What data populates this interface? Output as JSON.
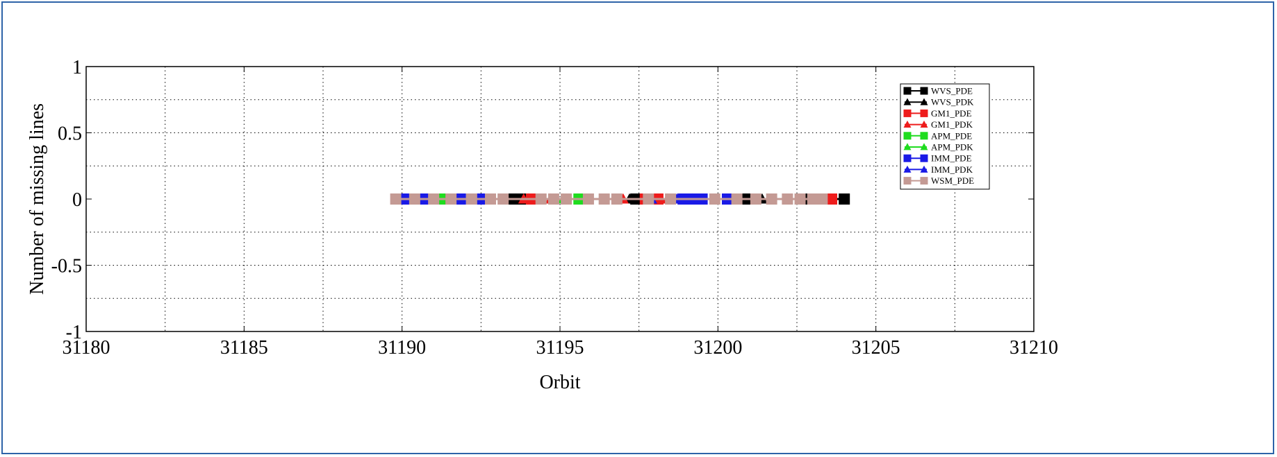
{
  "chart_data": {
    "type": "line",
    "title": "",
    "xlabel": "Orbit",
    "ylabel": "Number of missing lines",
    "xlim": [
      31180,
      31210
    ],
    "ylim": [
      -1,
      1
    ],
    "xticks": [
      "31180",
      "31185",
      "31190",
      "31195",
      "31200",
      "31205",
      "31210"
    ],
    "yticks": [
      "1",
      "0.5",
      "0",
      "-0.5",
      "-1"
    ],
    "grid": true,
    "legend_position": "top-right",
    "series": [
      {
        "name": "WVS_PDE",
        "marker": "square",
        "color": "#000000",
        "x": [
          31189.85,
          31193.5,
          31193.75,
          31197.4,
          31200.75,
          31201.0,
          31202.8,
          31204.0
        ],
        "y": [
          0,
          0,
          0,
          0,
          0,
          0,
          0,
          0
        ]
      },
      {
        "name": "WVS_PDK",
        "marker": "triangle",
        "color": "#000000",
        "x": [
          31193.6,
          31194.0,
          31197.2,
          31198.2,
          31200.5,
          31201.4
        ],
        "y": [
          0,
          0,
          0,
          0,
          0,
          0
        ]
      },
      {
        "name": "GM1_PDE",
        "marker": "square",
        "color": "#ee1c1c",
        "x": [
          31190.6,
          31191.3,
          31194.1,
          31197.7,
          31198.1,
          31198.9,
          31203.6
        ],
        "y": [
          0,
          0,
          0,
          0,
          0,
          0,
          0
        ]
      },
      {
        "name": "GM1_PDK",
        "marker": "triangle",
        "color": "#ee1c1c",
        "x": [
          31193.85,
          31194.7,
          31197.0,
          31198.0,
          31198.4
        ],
        "y": [
          0,
          0,
          0,
          0,
          0
        ]
      },
      {
        "name": "APM_PDE",
        "marker": "square",
        "color": "#1fdc1f",
        "x": [
          31191.2,
          31195.6
        ],
        "y": [
          0,
          0
        ]
      },
      {
        "name": "APM_PDK",
        "marker": "triangle",
        "color": "#1fdc1f",
        "x": [
          31195.1
        ],
        "y": [
          0
        ]
      },
      {
        "name": "IMM_PDE",
        "marker": "square",
        "color": "#1a1ae6",
        "x": [
          31190.15,
          31190.7,
          31191.85,
          31192.55,
          31198.9,
          31199.1,
          31199.3,
          31199.5,
          31200.3
        ],
        "y": [
          0,
          0,
          0,
          0,
          0,
          0,
          0,
          0,
          0
        ]
      },
      {
        "name": "IMM_PDK",
        "marker": "triangle",
        "color": "#1a1ae6",
        "x": [
          31197.9,
          31198.7,
          31199.2
        ],
        "y": [
          0,
          0,
          0
        ]
      },
      {
        "name": "WSM_PDE",
        "marker": "square",
        "color": "#c49a94",
        "x": [
          31189.8,
          31190.4,
          31191.0,
          31191.55,
          31192.2,
          31192.8,
          31193.2,
          31194.4,
          31194.8,
          31195.2,
          31195.9,
          31196.4,
          31196.8,
          31197.8,
          31198.5,
          31199.9,
          31200.6,
          31201.2,
          31201.7,
          31202.2,
          31202.6,
          31203.0,
          31203.3
        ],
        "y": [
          0,
          0,
          0,
          0,
          0,
          0,
          0,
          0,
          0,
          0,
          0,
          0,
          0,
          0,
          0,
          0,
          0,
          0,
          0,
          0,
          0,
          0,
          0
        ]
      }
    ]
  }
}
